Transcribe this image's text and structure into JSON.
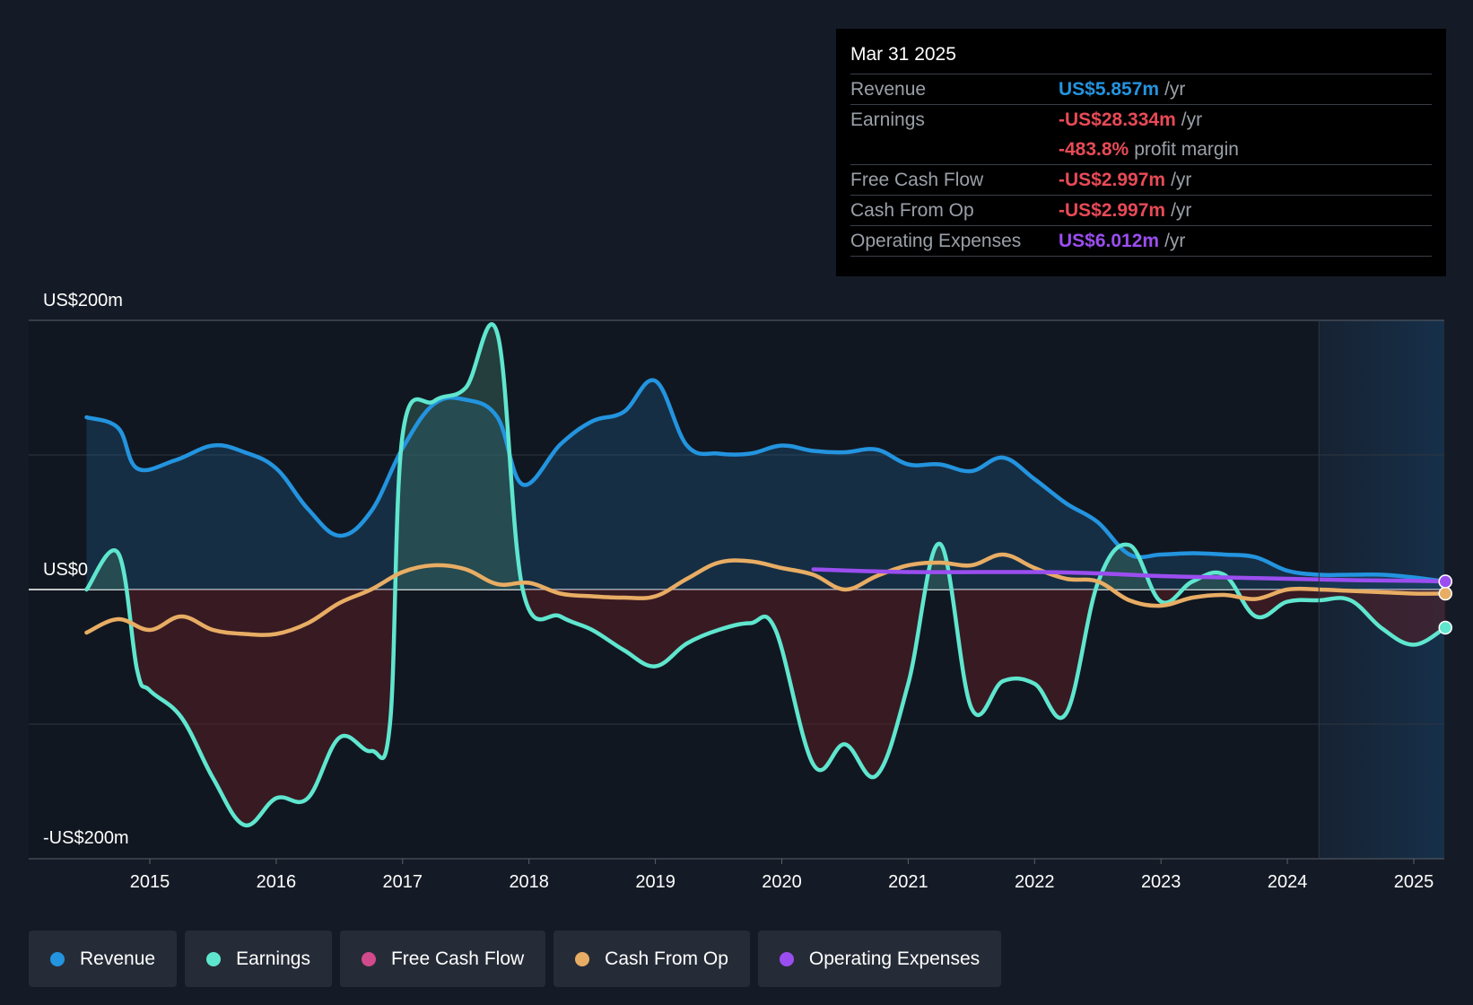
{
  "chart_data": {
    "type": "line",
    "title": "",
    "x_range": [
      2014.3,
      2025.3
    ],
    "y_range": [
      -200,
      200
    ],
    "y_labels": {
      "top": "US$200m",
      "zero": "US$0",
      "bottom": "-US$200m"
    },
    "x_ticks": [
      {
        "value": 2015,
        "label": "2015"
      },
      {
        "value": 2016,
        "label": "2016"
      },
      {
        "value": 2017,
        "label": "2017"
      },
      {
        "value": 2018,
        "label": "2018"
      },
      {
        "value": 2019,
        "label": "2019"
      },
      {
        "value": 2020,
        "label": "2020"
      },
      {
        "value": 2021,
        "label": "2021"
      },
      {
        "value": 2022,
        "label": "2022"
      },
      {
        "value": 2023,
        "label": "2023"
      },
      {
        "value": 2024,
        "label": "2024"
      },
      {
        "value": 2025,
        "label": "2025"
      }
    ],
    "grid_values": [
      200,
      100,
      0,
      -100,
      -200
    ],
    "forecast_start": 2024.25,
    "series": [
      {
        "name": "Revenue",
        "color": "#2394df",
        "fill": true,
        "points": [
          [
            2014.5,
            128
          ],
          [
            2014.75,
            120
          ],
          [
            2014.9,
            90
          ],
          [
            2015.2,
            96
          ],
          [
            2015.5,
            107
          ],
          [
            2015.75,
            102
          ],
          [
            2016.0,
            90
          ],
          [
            2016.25,
            60
          ],
          [
            2016.5,
            40
          ],
          [
            2016.75,
            58
          ],
          [
            2017.0,
            105
          ],
          [
            2017.25,
            138
          ],
          [
            2017.5,
            141
          ],
          [
            2017.75,
            128
          ],
          [
            2017.95,
            78
          ],
          [
            2018.25,
            108
          ],
          [
            2018.5,
            125
          ],
          [
            2018.75,
            132
          ],
          [
            2019.0,
            155
          ],
          [
            2019.25,
            107
          ],
          [
            2019.5,
            101
          ],
          [
            2019.75,
            101
          ],
          [
            2020.0,
            107
          ],
          [
            2020.25,
            103
          ],
          [
            2020.5,
            102
          ],
          [
            2020.75,
            104
          ],
          [
            2021.0,
            93
          ],
          [
            2021.25,
            93
          ],
          [
            2021.5,
            88
          ],
          [
            2021.75,
            98
          ],
          [
            2022.0,
            82
          ],
          [
            2022.25,
            64
          ],
          [
            2022.5,
            50
          ],
          [
            2022.75,
            26
          ],
          [
            2023.0,
            26
          ],
          [
            2023.25,
            27
          ],
          [
            2023.5,
            26
          ],
          [
            2023.75,
            24
          ],
          [
            2024.0,
            14
          ],
          [
            2024.25,
            11
          ],
          [
            2024.5,
            11
          ],
          [
            2024.75,
            11
          ],
          [
            2025.0,
            9
          ],
          [
            2025.25,
            5.9
          ]
        ]
      },
      {
        "name": "Earnings",
        "color": "#5fe6cf",
        "fill": true,
        "points": [
          [
            2014.5,
            0
          ],
          [
            2014.75,
            27
          ],
          [
            2014.9,
            -60
          ],
          [
            2015.0,
            -75
          ],
          [
            2015.25,
            -95
          ],
          [
            2015.5,
            -140
          ],
          [
            2015.75,
            -175
          ],
          [
            2016.0,
            -155
          ],
          [
            2016.25,
            -155
          ],
          [
            2016.5,
            -110
          ],
          [
            2016.75,
            -120
          ],
          [
            2016.9,
            -100
          ],
          [
            2017.0,
            115
          ],
          [
            2017.25,
            140
          ],
          [
            2017.5,
            150
          ],
          [
            2017.75,
            190
          ],
          [
            2017.95,
            0
          ],
          [
            2018.25,
            -20
          ],
          [
            2018.5,
            -30
          ],
          [
            2018.75,
            -45
          ],
          [
            2019.0,
            -57
          ],
          [
            2019.25,
            -40
          ],
          [
            2019.5,
            -30
          ],
          [
            2019.75,
            -25
          ],
          [
            2019.95,
            -30
          ],
          [
            2020.25,
            -130
          ],
          [
            2020.5,
            -115
          ],
          [
            2020.75,
            -138
          ],
          [
            2021.0,
            -70
          ],
          [
            2021.25,
            34
          ],
          [
            2021.5,
            -88
          ],
          [
            2021.75,
            -68
          ],
          [
            2022.0,
            -70
          ],
          [
            2022.25,
            -92
          ],
          [
            2022.5,
            5
          ],
          [
            2022.75,
            33
          ],
          [
            2023.0,
            -9
          ],
          [
            2023.25,
            6
          ],
          [
            2023.5,
            11
          ],
          [
            2023.75,
            -20
          ],
          [
            2024.0,
            -9
          ],
          [
            2024.25,
            -8
          ],
          [
            2024.5,
            -8
          ],
          [
            2024.75,
            -29
          ],
          [
            2025.0,
            -41
          ],
          [
            2025.25,
            -28.3
          ]
        ]
      },
      {
        "name": "Free Cash Flow",
        "color": "#d14a8c",
        "fill": false,
        "points": []
      },
      {
        "name": "Cash From Op",
        "color": "#e8ad64",
        "fill": false,
        "points": [
          [
            2014.5,
            -32
          ],
          [
            2014.75,
            -22
          ],
          [
            2015.0,
            -30
          ],
          [
            2015.25,
            -20
          ],
          [
            2015.5,
            -30
          ],
          [
            2015.75,
            -33
          ],
          [
            2016.0,
            -33
          ],
          [
            2016.25,
            -25
          ],
          [
            2016.5,
            -10
          ],
          [
            2016.75,
            0
          ],
          [
            2017.0,
            13
          ],
          [
            2017.25,
            18
          ],
          [
            2017.5,
            15
          ],
          [
            2017.75,
            4
          ],
          [
            2018.0,
            5
          ],
          [
            2018.25,
            -3
          ],
          [
            2018.5,
            -5
          ],
          [
            2018.75,
            -6
          ],
          [
            2019.0,
            -5
          ],
          [
            2019.25,
            8
          ],
          [
            2019.5,
            20
          ],
          [
            2019.75,
            21
          ],
          [
            2020.0,
            16
          ],
          [
            2020.25,
            11
          ],
          [
            2020.5,
            0
          ],
          [
            2020.75,
            10
          ],
          [
            2021.0,
            18
          ],
          [
            2021.25,
            20
          ],
          [
            2021.5,
            18
          ],
          [
            2021.75,
            26
          ],
          [
            2022.0,
            16
          ],
          [
            2022.25,
            8
          ],
          [
            2022.5,
            6
          ],
          [
            2022.75,
            -8
          ],
          [
            2023.0,
            -12
          ],
          [
            2023.25,
            -6
          ],
          [
            2023.5,
            -4
          ],
          [
            2023.75,
            -7
          ],
          [
            2024.0,
            0
          ],
          [
            2024.25,
            0
          ],
          [
            2024.5,
            -1
          ],
          [
            2024.75,
            -2
          ],
          [
            2025.0,
            -3
          ],
          [
            2025.25,
            -3.0
          ]
        ]
      },
      {
        "name": "Operating Expenses",
        "color": "#9b4ef0",
        "fill": false,
        "points": [
          [
            2020.25,
            15
          ],
          [
            2021.0,
            13
          ],
          [
            2022.0,
            13
          ],
          [
            2022.5,
            12
          ],
          [
            2023.0,
            10
          ],
          [
            2023.5,
            9
          ],
          [
            2024.0,
            8
          ],
          [
            2024.5,
            7
          ],
          [
            2025.0,
            6.5
          ],
          [
            2025.25,
            6.0
          ]
        ]
      }
    ]
  },
  "tooltip": {
    "date": "Mar 31 2025",
    "rows": [
      {
        "label": "Revenue",
        "value": "US$5.857m",
        "unit": "/yr",
        "color": "#2394df"
      },
      {
        "label": "Earnings",
        "value": "-US$28.334m",
        "unit": "/yr",
        "color": "#e84a56"
      },
      {
        "label": "",
        "value": "-483.8%",
        "unit": "profit margin",
        "color": "#e84a56"
      },
      {
        "label": "Free Cash Flow",
        "value": "-US$2.997m",
        "unit": "/yr",
        "color": "#e84a56"
      },
      {
        "label": "Cash From Op",
        "value": "-US$2.997m",
        "unit": "/yr",
        "color": "#e84a56"
      },
      {
        "label": "Operating Expenses",
        "value": "US$6.012m",
        "unit": "/yr",
        "color": "#9b4ef0"
      }
    ]
  },
  "legend": [
    {
      "label": "Revenue",
      "color": "#2394df"
    },
    {
      "label": "Earnings",
      "color": "#5fe6cf"
    },
    {
      "label": "Free Cash Flow",
      "color": "#d14a8c"
    },
    {
      "label": "Cash From Op",
      "color": "#e8ad64"
    },
    {
      "label": "Operating Expenses",
      "color": "#9b4ef0"
    }
  ]
}
